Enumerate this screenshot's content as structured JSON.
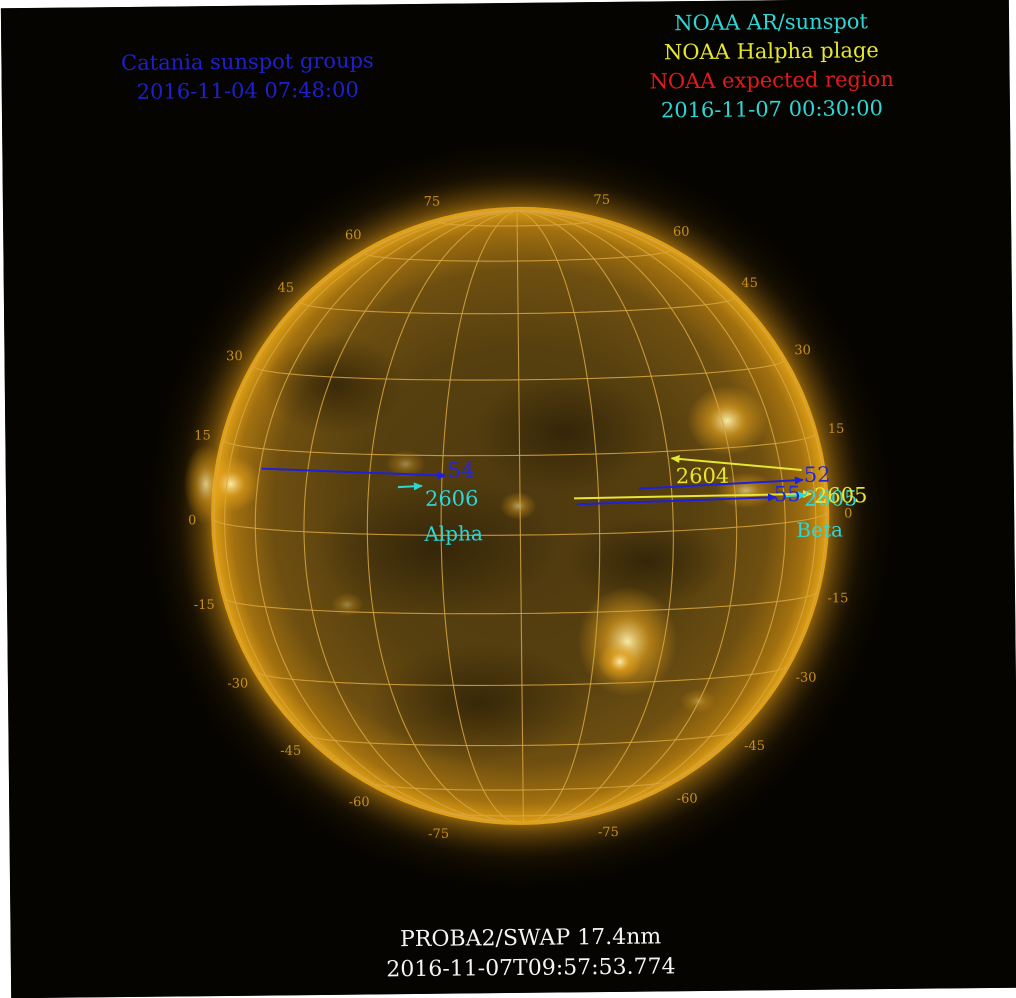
{
  "catania": {
    "title": "Catania sunspot groups",
    "datetime": "2016-11-04 07:48:00",
    "color": "#1f1fd0"
  },
  "noaa": {
    "ar_label": "NOAA AR/sunspot",
    "plage_label": "NOAA Halpha plage",
    "expected_label": "NOAA expected region",
    "datetime": "2016-11-07 00:30:00",
    "ar_color": "#2fd6d6",
    "plage_color": "#e6e633",
    "expected_color": "#e21a1a"
  },
  "footer": {
    "instrument": "PROBA2/SWAP 17.4nm",
    "timestamp": "2016-11-07T09:57:53.774"
  },
  "grid_labels": {
    "left": [
      "75",
      "60",
      "45",
      "30",
      "15",
      "0",
      "-15",
      "-30",
      "-45",
      "-60",
      "-75"
    ],
    "right": [
      "75",
      "60",
      "45",
      "30",
      "15",
      "0",
      "-15",
      "-30",
      "-45",
      "-60",
      "-75"
    ]
  },
  "regions": {
    "catania_54": "54",
    "noaa_2606": "2606",
    "noaa_2606_class": "Alpha",
    "catania_52": "52",
    "catania_55": "55",
    "plage_2604": "2604",
    "plage_2605": "2605",
    "noaa_2605": "2605",
    "noaa_2605_class": "Beta"
  },
  "colors": {
    "disk": "#c98a10",
    "grid": "#d9a640",
    "background": "#050300"
  }
}
